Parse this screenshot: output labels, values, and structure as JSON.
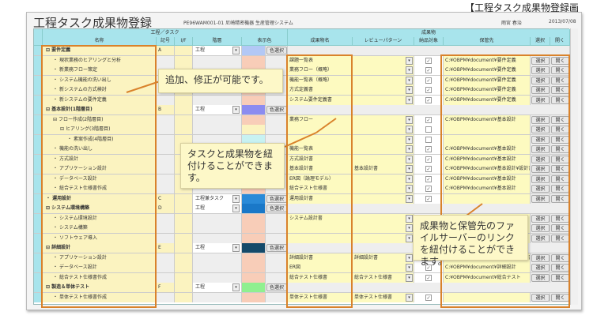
{
  "caption": "【工程タスク成果物登録画面】",
  "window": {
    "title": "工程タスク成果物登録",
    "system": "PE96WAM001-01 尼崎精密機器 生産管理システム",
    "user": "雨宮 春治",
    "date": "2013/07/08"
  },
  "headers": {
    "group_task": "工程／タスク",
    "group_deliv": "成果物",
    "name": "名称",
    "code": "記号",
    "if": "I/F",
    "level": "階層",
    "color": "表示色",
    "deliv": "成果物名",
    "review": "レビューパターン",
    "target": "納品対象",
    "storage": "保管先",
    "select": "選択",
    "open": "開く"
  },
  "labels": {
    "color_button": "色選択",
    "select_button": "選択",
    "open_button": "開く",
    "dropdown": "▾",
    "expand": "⊟",
    "bullet": "・",
    "check": "✓"
  },
  "rows": [
    {
      "name": "要件定義",
      "parent": true,
      "indent": 0,
      "code": "A",
      "level": "工程",
      "color": "#b3c8f5"
    },
    {
      "name": "現状業務のヒアリングと分析",
      "indent": 1,
      "color": "#f8cdb8",
      "deliv": "課題一覧表",
      "check": true,
      "path": "C:¥OBPM¥document¥要件定義"
    },
    {
      "name": "新業務フロー策定",
      "indent": 1,
      "color": "#f8cdb8",
      "deliv": "業務フロー（概略）",
      "check": true,
      "path": "C:¥OBPM¥document¥要件定義"
    },
    {
      "name": "システム機能の洗い出し",
      "indent": 1,
      "color": "#f8cdb8",
      "deliv": "機能一覧表（概略）",
      "check": true,
      "path": "C:¥OBPM¥document¥要件定義"
    },
    {
      "name": "新システムの方式検討",
      "indent": 1,
      "color": "#f8cdb8",
      "deliv": "方式定義書",
      "check": true,
      "path": "C:¥OBPM¥document¥要件定義"
    },
    {
      "name": "新システムの要件定義",
      "indent": 1,
      "color": "#f8cdb8",
      "deliv": "システム要件定義書",
      "check": true,
      "path": "C:¥OBPM¥document¥要件定義"
    },
    {
      "name": "基本設計(1階層目)",
      "parent": true,
      "indent": 0,
      "code": "B",
      "level": "工程",
      "color": "#8c8cf0"
    },
    {
      "name": "フロー作成(2階層目)",
      "parent": true,
      "indent": 1,
      "color": "#f8cdb8",
      "deliv": "業務フロー",
      "check": true,
      "path": "C:¥OBPM¥document¥基本設計"
    },
    {
      "name": "ヒアリング(3階層目)",
      "parent": true,
      "indent": 2,
      "color": "#fbf3c0",
      "deliv": "",
      "check": false,
      "path": ""
    },
    {
      "name": "素案作成(4階層目)",
      "indent": 3,
      "color": "#c8f2f2",
      "deliv": "",
      "check": false,
      "path": ""
    },
    {
      "name": "機能の洗い出し",
      "indent": 1,
      "color": "#f8cdb8",
      "deliv": "機能一覧表",
      "check": true,
      "path": "C:¥OBPM¥document¥基本設計"
    },
    {
      "name": "方式設計",
      "indent": 1,
      "color": "#f8cdb8",
      "deliv": "方式設計書",
      "check": true,
      "path": "C:¥OBPM¥document¥基本設計"
    },
    {
      "name": "アプリケーション設計",
      "indent": 1,
      "color": "#f8cdb8",
      "deliv": "基本設計書",
      "review": "基本設計書",
      "check": true,
      "path": "C:¥OBPM¥document¥基本設計¥設計書"
    },
    {
      "name": "データベース設計",
      "indent": 1,
      "color": "#f8cdb8",
      "deliv": "ER図（論理モデル）",
      "check": true,
      "path": "C:¥OBPM¥document¥基本設計"
    },
    {
      "name": "総合テスト仕様書作成",
      "indent": 1,
      "color": "#f8cdb8",
      "deliv": "総合テスト仕様書",
      "check": true,
      "path": "C:¥OBPM¥document¥基本設計"
    },
    {
      "name": "運用設計",
      "indent": 0,
      "bold": true,
      "code": "C",
      "level": "工程兼タスク",
      "color": "#2a8ad8",
      "deliv": "運用設計書",
      "check": true,
      "path": ""
    },
    {
      "name": "システム環境構築",
      "parent": true,
      "indent": 0,
      "code": "D",
      "level": "工程",
      "color": "#1a78c8"
    },
    {
      "name": "システム環境設計",
      "indent": 1,
      "color": "#f8cdb8",
      "deliv": "システム設計書",
      "path": ""
    },
    {
      "name": "システム構築",
      "indent": 1,
      "color": "#f8cdb8",
      "deliv": "",
      "path": ""
    },
    {
      "name": "ソフトウェア導入",
      "indent": 1,
      "color": "#f8cdb8",
      "deliv": "",
      "path": ""
    },
    {
      "name": "詳細設計",
      "parent": true,
      "indent": 0,
      "code": "E",
      "level": "工程",
      "color": "#154a6a"
    },
    {
      "name": "アプリケーション設計",
      "indent": 1,
      "color": "#f8cdb8",
      "deliv": "詳細設計書",
      "review": "詳細設計書",
      "check": true,
      "path": "C:¥OBPM¥document¥詳細設計¥設計書"
    },
    {
      "name": "データベース設計",
      "indent": 1,
      "color": "#f8cdb8",
      "deliv": "ER図",
      "check": true,
      "path": "C:¥OBPM¥document¥詳細設計"
    },
    {
      "name": "総合テスト仕様書作成",
      "indent": 1,
      "color": "#f8cdb8",
      "deliv": "総合テスト仕様書",
      "review": "総合テスト仕様書",
      "check": true,
      "path": "C:¥OBPM¥document¥総合テスト"
    },
    {
      "name": "製造＆単体テスト",
      "parent": true,
      "indent": 0,
      "code": "F",
      "level": "工程",
      "color": "#90f090"
    },
    {
      "name": "単体テスト仕様書作成",
      "indent": 1,
      "color": "#f8cdb8",
      "deliv": "単体テスト仕様書",
      "review": "単体テスト仕様書",
      "check": true,
      "path": ""
    }
  ],
  "callouts": [
    "追加、修正が可能です。",
    "タスクと成果物を紐付けることができます。",
    "成果物と保管先のファイルサーバーのリンクを紐付けることができます。"
  ],
  "colors": {
    "highlight": "#d9822b",
    "header": "#a8e4ec",
    "input": "#fdfac0"
  }
}
